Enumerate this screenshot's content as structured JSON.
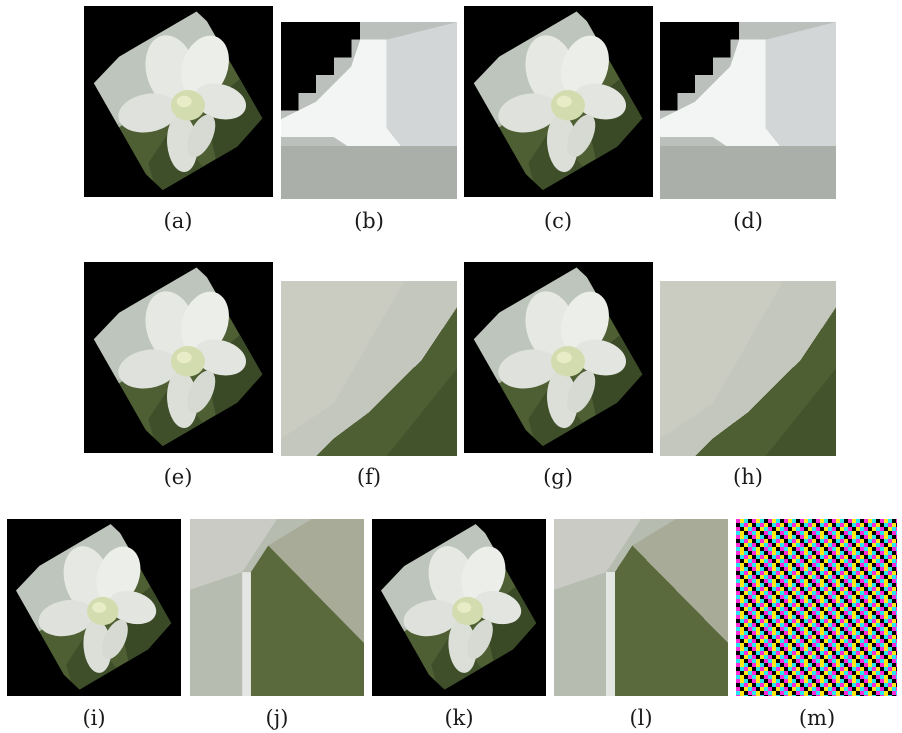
{
  "figure": {
    "captions": {
      "a": "(a)",
      "b": "(b)",
      "c": "(c)",
      "d": "(d)",
      "e": "(e)",
      "f": "(f)",
      "g": "(g)",
      "h": "(h)",
      "i": "(i)",
      "j": "(j)",
      "k": "(k)",
      "l": "(l)",
      "m": "(m)"
    }
  },
  "colors": {
    "background": "#000000",
    "petal": "#e6e8e4",
    "petal_shadow": "#c9ccc6",
    "center": "#d3dcae",
    "leaf": "#4f5f34",
    "leaf_dark": "#3a4a26",
    "pattern": [
      "#ff2bd6",
      "#23e6f2",
      "#ffe71a",
      "#000000"
    ]
  }
}
